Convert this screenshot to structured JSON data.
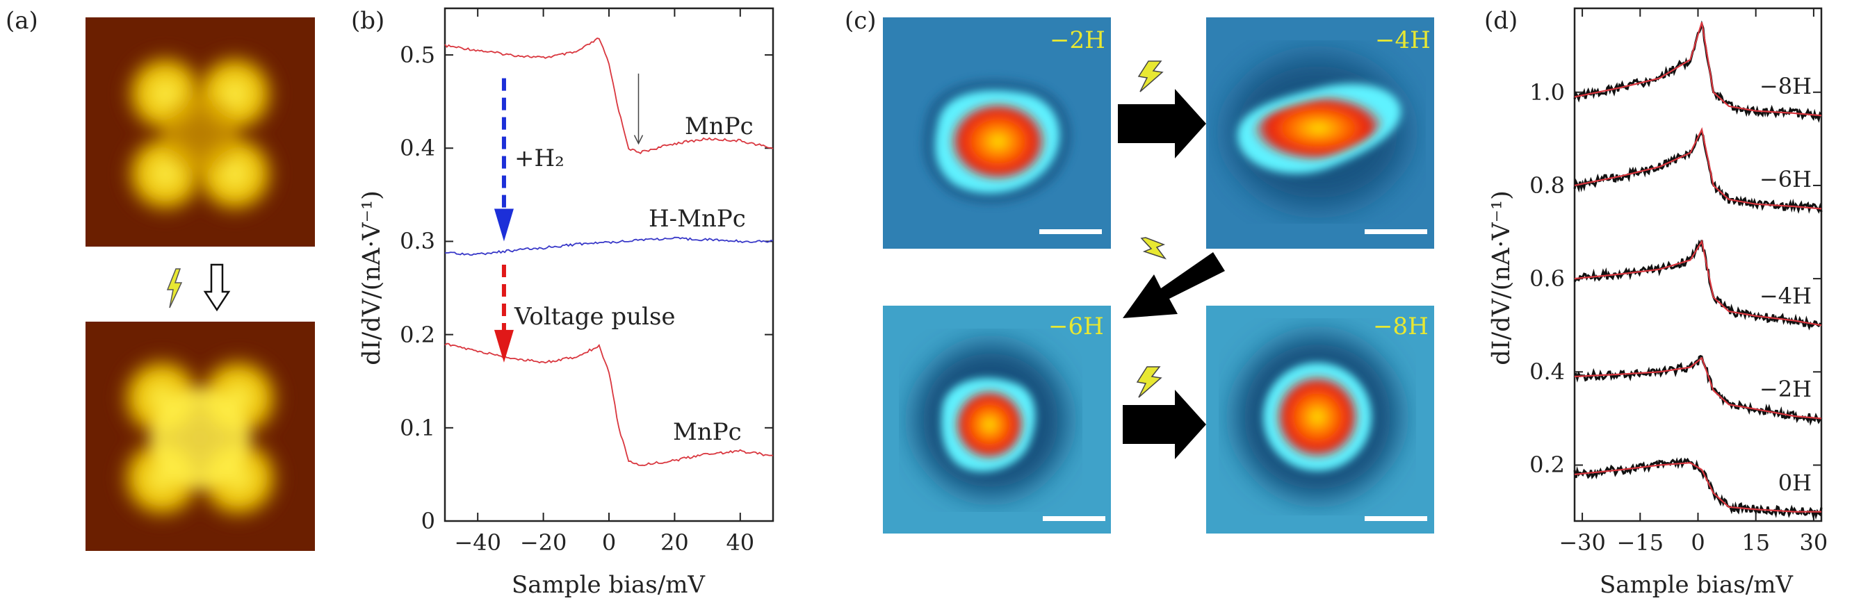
{
  "panels": {
    "a": "(a)",
    "b": "(b)",
    "c": "(c)",
    "d": "(d)"
  },
  "colors": {
    "stm_warm_bg": "#6b1f00",
    "stm_warm_lobe": "#ffe000",
    "stm_blue_bg": "#2f7fb0",
    "stm_cyan_ring": "#55f0ff",
    "stm_red_core": "#ff2a00",
    "curve_red": "#d9363e",
    "curve_blue": "#3838c8",
    "arrow_blue": "#1c2fd8",
    "arrow_red": "#e01818",
    "label_yellow": "#e8e832"
  },
  "panel_c": {
    "labels": [
      "−2H",
      "−4H",
      "−6H",
      "−8H"
    ],
    "icons": [
      "lightning-icon",
      "arrow-right-icon",
      "arrow-down-left-icon"
    ]
  },
  "chart_data": [
    {
      "type": "line",
      "panel": "b",
      "xlabel": "Sample bias/mV",
      "ylabel": "dI/dV/(nA·V⁻¹)",
      "xlim": [
        -50,
        50
      ],
      "ylim": [
        0,
        0.55
      ],
      "xticks": [
        -40,
        -20,
        0,
        20,
        40
      ],
      "xtick_labels": [
        "−40",
        "−20",
        "0",
        "20",
        "40"
      ],
      "yticks": [
        0,
        0.1,
        0.2,
        0.3,
        0.4,
        0.5
      ],
      "ytick_labels": [
        "0",
        "0.1",
        "0.2",
        "0.3",
        "0.4",
        "0.5"
      ],
      "series": [
        {
          "name": "MnPc",
          "x": [
            -50,
            -40,
            -30,
            -20,
            -10,
            -3,
            0,
            3,
            6,
            9,
            20,
            30,
            40,
            50
          ],
          "y": [
            0.51,
            0.505,
            0.5,
            0.497,
            0.503,
            0.518,
            0.49,
            0.44,
            0.4,
            0.395,
            0.405,
            0.41,
            0.408,
            0.4
          ]
        },
        {
          "name": "H-MnPc",
          "x": [
            -50,
            -40,
            -30,
            -20,
            -10,
            0,
            10,
            20,
            30,
            40,
            50
          ],
          "y": [
            0.288,
            0.286,
            0.29,
            0.293,
            0.297,
            0.299,
            0.302,
            0.303,
            0.302,
            0.3,
            0.3
          ]
        },
        {
          "name": "MnPc",
          "x": [
            -50,
            -40,
            -30,
            -20,
            -10,
            -3,
            0,
            3,
            6,
            9,
            20,
            30,
            40,
            50
          ],
          "y": [
            0.19,
            0.182,
            0.175,
            0.17,
            0.176,
            0.188,
            0.16,
            0.1,
            0.065,
            0.06,
            0.065,
            0.072,
            0.075,
            0.07
          ]
        }
      ],
      "annotations": [
        "+H₂",
        "Voltage pulse"
      ]
    },
    {
      "type": "line",
      "panel": "d",
      "xlabel": "Sample bias/mV",
      "ylabel": "dI/dV/(nA·V⁻¹)",
      "xlim": [
        -32,
        32
      ],
      "ylim": [
        0.08,
        1.18
      ],
      "xticks": [
        -30,
        -15,
        0,
        15,
        30
      ],
      "xtick_labels": [
        "−30",
        "−15",
        "0",
        "15",
        "30"
      ],
      "yticks": [
        0.2,
        0.4,
        0.6,
        0.8,
        1.0
      ],
      "ytick_labels": [
        "0.2",
        "0.4",
        "0.6",
        "0.8",
        "1.0"
      ],
      "series": [
        {
          "name": "0H",
          "x": [
            -32,
            -20,
            -10,
            -2,
            1,
            4,
            8,
            15,
            25,
            32
          ],
          "y": [
            0.18,
            0.19,
            0.2,
            0.205,
            0.19,
            0.14,
            0.11,
            0.105,
            0.1,
            0.1
          ]
        },
        {
          "name": "−2H",
          "x": [
            -32,
            -20,
            -10,
            -2,
            1,
            4,
            8,
            15,
            25,
            32
          ],
          "y": [
            0.39,
            0.395,
            0.4,
            0.41,
            0.43,
            0.36,
            0.33,
            0.32,
            0.305,
            0.3
          ]
        },
        {
          "name": "−4H",
          "x": [
            -32,
            -20,
            -10,
            -2,
            1,
            4,
            8,
            15,
            25,
            32
          ],
          "y": [
            0.6,
            0.61,
            0.62,
            0.64,
            0.68,
            0.56,
            0.53,
            0.52,
            0.51,
            0.5
          ]
        },
        {
          "name": "−6H",
          "x": [
            -32,
            -20,
            -10,
            -2,
            1,
            4,
            8,
            15,
            25,
            32
          ],
          "y": [
            0.8,
            0.82,
            0.84,
            0.87,
            0.92,
            0.8,
            0.77,
            0.76,
            0.755,
            0.75
          ]
        },
        {
          "name": "−8H",
          "x": [
            -32,
            -20,
            -10,
            -2,
            1,
            4,
            8,
            15,
            25,
            32
          ],
          "y": [
            0.99,
            1.01,
            1.03,
            1.07,
            1.15,
            1.0,
            0.97,
            0.96,
            0.955,
            0.95
          ]
        }
      ]
    }
  ]
}
